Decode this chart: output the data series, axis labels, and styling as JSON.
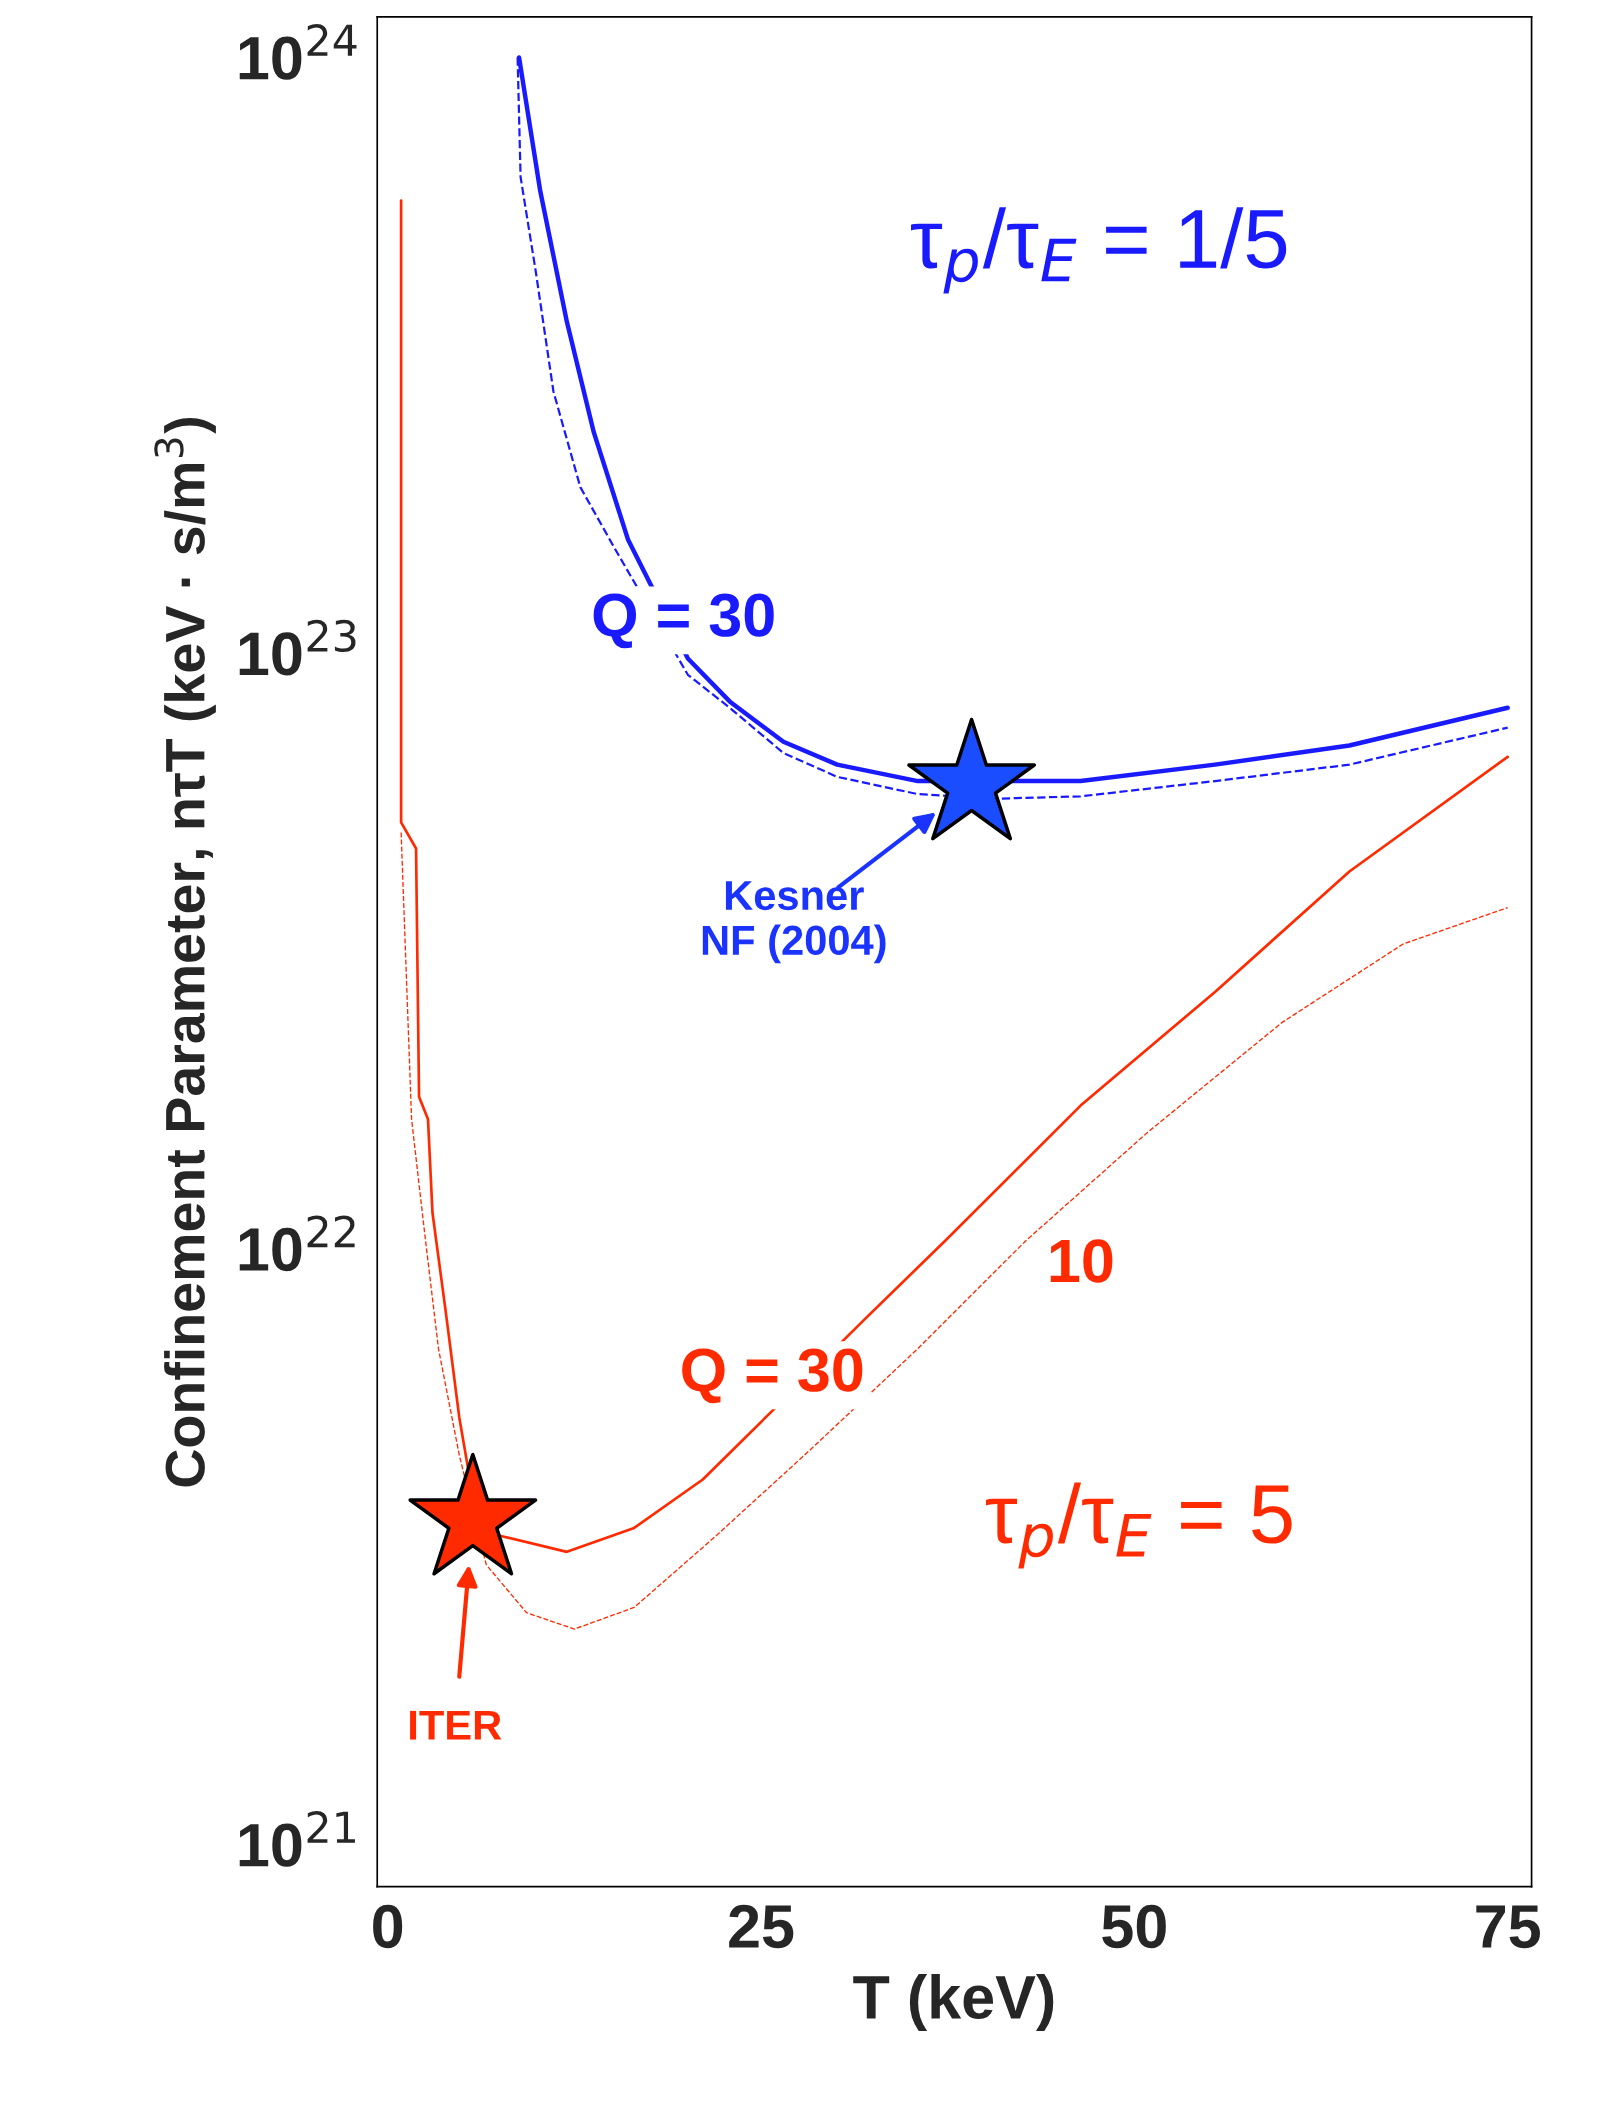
{
  "chart_data": {
    "type": "line",
    "xlabel": "T (keV)",
    "ylabel": "Confinement Parameter, nτT (keV · s/m$^{3}$)",
    "log": "y",
    "xlim": [
      -0.7,
      76.6
    ],
    "xticks": [
      0,
      25,
      50,
      75
    ],
    "ylim": [
      8.5e+20,
      1.17e+24
    ],
    "yticks": [
      {
        "value": 1e+21,
        "label": "10$^{21}$"
      },
      {
        "value": 1e+22,
        "label": "10$^{22}$"
      },
      {
        "value": 1e+23,
        "label": "10$^{23}$"
      },
      {
        "value": 1e+24,
        "label": "10$^{24}$"
      }
    ],
    "grid": false,
    "legend": false,
    "series": [
      {
        "name": "Q = 30",
        "color": "#1a1aff",
        "line_style": "solid",
        "x": [
          8.8,
          10.2,
          12.0,
          13.8,
          16.1,
          20.1,
          22.9,
          26.5,
          30.1,
          35.5,
          46.4,
          55.4,
          64.4,
          75
        ],
        "values": [
          1e+24,
          6e+23,
          3.6e+23,
          2.35e+23,
          1.55e+23,
          9.8e+22,
          8.3e+22,
          7.1e+22,
          6.5e+22,
          6.1e+22,
          6.1e+22,
          6.5e+22,
          7e+22,
          8.1e+22
        ]
      },
      {
        "color": "#1a1aff",
        "line_style": "dashed",
        "x": [
          8.7,
          8.9,
          9.9,
          11.1,
          12.9,
          15.2,
          20.1,
          22.9,
          26.5,
          30.1,
          35.5,
          40.9,
          46.4,
          55.4,
          64.4,
          75
        ],
        "values": [
          1e+24,
          6.3e+23,
          4.4e+23,
          2.75e+23,
          1.9e+23,
          1.5e+23,
          9.2e+22,
          8.1e+22,
          6.8e+22,
          6.2e+22,
          5.8e+22,
          5.7e+22,
          5.75e+22,
          6.1e+22,
          6.5e+22,
          7.5e+22
        ]
      },
      {
        "name": "Q = 30",
        "color": "#ff2a00",
        "line_style": "solid",
        "x": [
          0.9,
          0.9,
          1.9,
          2.1,
          2.7,
          3.0,
          3.9,
          4.8,
          5.7,
          7.5,
          12.0,
          16.5,
          21.1,
          25.6,
          31.9,
          37.3,
          46.4,
          55.4,
          64.4,
          75
        ],
        "values": [
          5.75e+23,
          5.2e+22,
          4.7e+22,
          1.8e+22,
          1.65e+22,
          1.15e+22,
          7.8e+21,
          5.2e+21,
          3.85e+21,
          3.3e+21,
          3.1e+21,
          3.4e+21,
          4.1e+21,
          5.3e+21,
          7.6e+21,
          1.03e+22,
          1.74e+22,
          2.7e+22,
          4.3e+22,
          6.7e+22
        ]
      },
      {
        "name": "10",
        "color": "#ff2a00",
        "line_style": "dashed",
        "x": [
          0.9,
          1.6,
          2.5,
          3.4,
          4.8,
          6.6,
          9.3,
          12.5,
          16.5,
          22.0,
          28.3,
          35.5,
          42.7,
          50.9,
          59.9,
          68.0,
          75
        ],
        "values": [
          5e+22,
          1.65e+22,
          1.05e+22,
          6.8e+21,
          4.5e+21,
          2.95e+21,
          2.45e+21,
          2.3e+21,
          2.5e+21,
          3.3e+21,
          4.6e+21,
          6.8e+21,
          1.03e+22,
          1.57e+22,
          2.4e+22,
          3.25e+22,
          3.74e+22
        ]
      },
      {
        "type": "scatter",
        "marker": "star",
        "color": "#1a4dff",
        "x": [
          39.1
        ],
        "values": [
          6e+22
        ]
      },
      {
        "type": "scatter",
        "marker": "star",
        "color": "#ff2a00",
        "x": [
          5.7
        ],
        "values": [
          3.5e+21
        ]
      }
    ],
    "annotations": [
      "τ$_{p}$/τ$_{E}$ = 1/5",
      "τ$_{p}$/τ$_{E}$ = 5",
      "Kesner NF (2004)",
      "ITER"
    ]
  }
}
